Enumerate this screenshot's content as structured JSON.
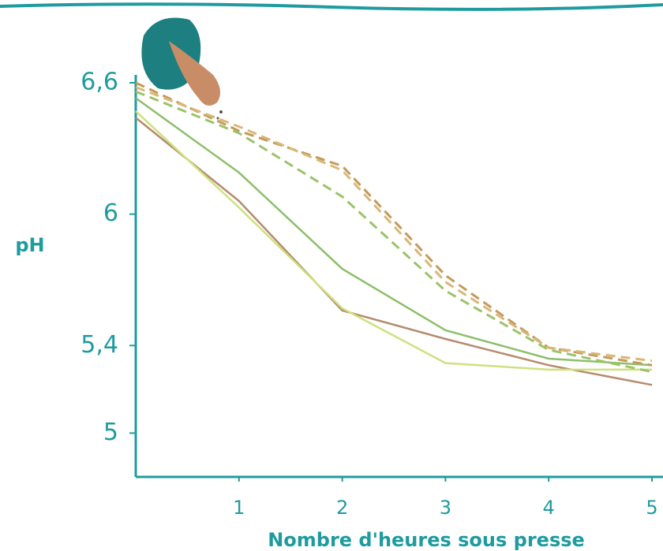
{
  "chart_data": {
    "type": "line",
    "x_label": "Nombre d'heures sous presse",
    "y_label": "pH",
    "x": [
      0,
      1,
      2,
      3,
      4,
      5
    ],
    "series": [
      {
        "color": "#b58b6e",
        "dashed": false,
        "values": [
          6.44,
          6.06,
          5.56,
          5.43,
          5.31,
          5.22
        ]
      },
      {
        "color": "#8cbf6a",
        "dashed": false,
        "values": [
          6.53,
          6.19,
          5.75,
          5.47,
          5.34,
          5.31
        ]
      },
      {
        "color": "#cfe07e",
        "dashed": false,
        "values": [
          6.47,
          6.03,
          5.57,
          5.32,
          5.29,
          5.29
        ]
      },
      {
        "color": "#c49a5a",
        "dashed": true,
        "values": [
          6.6,
          6.38,
          6.22,
          5.72,
          5.39,
          5.31
        ]
      },
      {
        "color": "#9cc36a",
        "dashed": true,
        "values": [
          6.56,
          6.37,
          6.08,
          5.65,
          5.38,
          5.28
        ]
      },
      {
        "color": "#d8b878",
        "dashed": true,
        "values": [
          6.58,
          6.4,
          6.2,
          5.69,
          5.39,
          5.33
        ]
      }
    ],
    "xlim": [
      0,
      5
    ],
    "ylim": [
      4.8,
      6.6
    ],
    "xticks": [
      1,
      2,
      3,
      4,
      5
    ],
    "yticks": [
      {
        "value": 6.6,
        "label": "6,6"
      },
      6,
      {
        "value": 5.4,
        "label": "5,4"
      },
      5
    ],
    "axis_color": "#1f9ba0"
  }
}
